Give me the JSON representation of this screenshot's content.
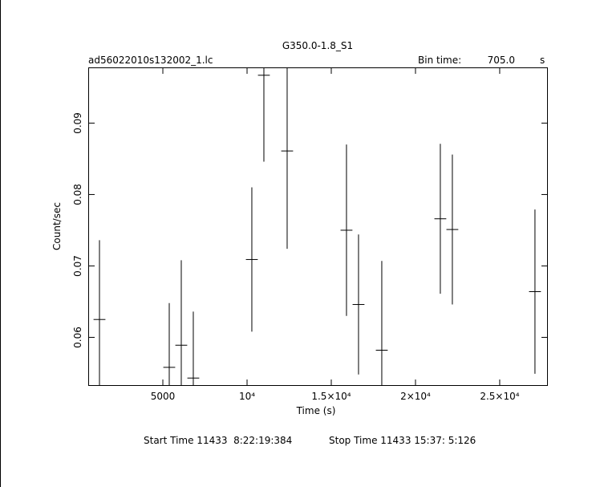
{
  "chart_data": {
    "type": "errorbar",
    "title": "G350.0-1.8_S1",
    "file_name": "ad56022010s132002_1.lc",
    "bin_time_label": "Bin time:",
    "bin_time": "705.0",
    "bin_time_unit": "s",
    "x_label": "Time (s)",
    "y_label": "Count/sec",
    "start_time": "Start Time 11433  8:22:19:384",
    "stop_time": "Stop Time 11433 15:37: 5:126",
    "color": "#000000",
    "x": [
      1237,
      5380,
      6094,
      6808,
      10284,
      10999,
      12380,
      15903,
      16618,
      17999,
      21475,
      22189,
      27094
    ],
    "values": [
      0.0625,
      0.0558,
      0.0589,
      0.0543,
      0.0709,
      0.0967,
      0.0861,
      0.075,
      0.0646,
      0.0582,
      0.0766,
      0.0751,
      0.0664
    ],
    "errors": [
      0.0111,
      0.009,
      0.0119,
      0.0093,
      0.0101,
      0.0121,
      0.0137,
      0.012,
      0.0098,
      0.0125,
      0.0105,
      0.0105,
      0.0115
    ],
    "xlim": [
      570,
      27860
    ],
    "ylim": [
      0.0532,
      0.0978
    ],
    "xticks": [
      5000,
      {
        "value": 10000,
        "label": "10⁴"
      },
      {
        "value": 15000,
        "label": "1.5×10⁴"
      },
      {
        "value": 20000,
        "label": "2×10⁴"
      },
      {
        "value": 25000,
        "label": "2.5×10⁴"
      }
    ],
    "yticks": [
      0.06,
      0.07,
      0.08,
      0.09
    ]
  }
}
